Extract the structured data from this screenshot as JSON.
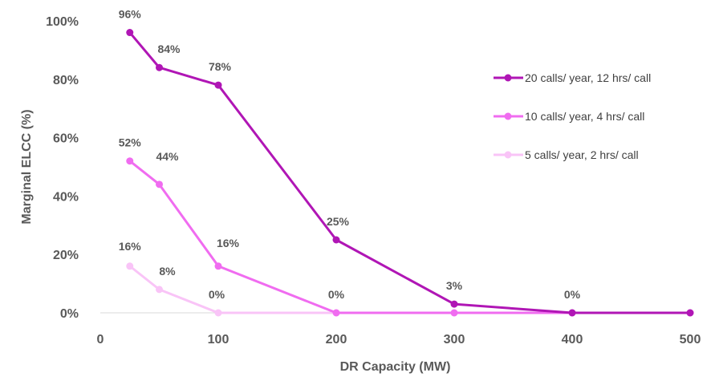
{
  "chart_data": {
    "type": "line",
    "title": "",
    "xlabel": "DR Capacity (MW)",
    "ylabel": "Marginal ELCC (%)",
    "xlim": [
      0,
      500
    ],
    "ylim": [
      0,
      100
    ],
    "x_ticks": [
      "0",
      "100",
      "200",
      "300",
      "400",
      "500"
    ],
    "y_ticks": [
      "0%",
      "20%",
      "40%",
      "60%",
      "80%",
      "100%"
    ],
    "grid": false,
    "legend_position": "right",
    "series": [
      {
        "name": "20 calls/ year, 12 hrs/ call",
        "color": "#b016b5",
        "x": [
          25,
          50,
          100,
          200,
          300,
          400,
          500
        ],
        "y": [
          96,
          84,
          78,
          25,
          3,
          0,
          0
        ],
        "labels": [
          "96%",
          "84%",
          "78%",
          "25%",
          "3%",
          "0%",
          ""
        ]
      },
      {
        "name": "10 calls/ year, 4 hrs/ call",
        "color": "#f06cf0",
        "x": [
          25,
          50,
          100,
          200,
          300,
          400,
          500
        ],
        "y": [
          52,
          44,
          16,
          0,
          0,
          0,
          0
        ],
        "labels": [
          "52%",
          "44%",
          "16%",
          "0%",
          "",
          "",
          ""
        ]
      },
      {
        "name": "5 calls/ year, 2 hrs/ call",
        "color": "#f9c4f7",
        "x": [
          25,
          50,
          100,
          200,
          300,
          400,
          500
        ],
        "y": [
          16,
          8,
          0,
          0,
          0,
          0,
          0
        ],
        "labels": [
          "16%",
          "8%",
          "0%",
          "",
          "",
          "",
          ""
        ]
      }
    ]
  }
}
